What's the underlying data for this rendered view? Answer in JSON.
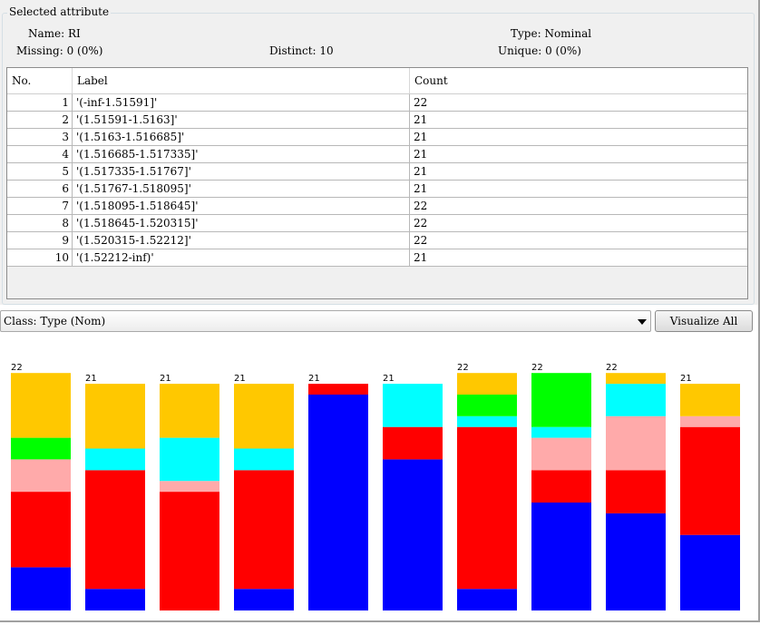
{
  "selected_attribute": {
    "title": "Selected attribute",
    "name_label": "Name:",
    "name_value": "RI",
    "type_label": "Type:",
    "type_value": "Nominal",
    "missing_label": "Missing:",
    "missing_value": "0 (0%)",
    "distinct_label": "Distinct:",
    "distinct_value": "10",
    "unique_label": "Unique:",
    "unique_value": "0 (0%)"
  },
  "table": {
    "headers": [
      "No.",
      "Label",
      "Count"
    ],
    "rows": [
      {
        "no": "1",
        "label": "'(-inf-1.51591]'",
        "count": "22"
      },
      {
        "no": "2",
        "label": "'(1.51591-1.5163]'",
        "count": "21"
      },
      {
        "no": "3",
        "label": "'(1.5163-1.516685]'",
        "count": "21"
      },
      {
        "no": "4",
        "label": "'(1.516685-1.517335]'",
        "count": "21"
      },
      {
        "no": "5",
        "label": "'(1.517335-1.51767]'",
        "count": "21"
      },
      {
        "no": "6",
        "label": "'(1.51767-1.518095]'",
        "count": "21"
      },
      {
        "no": "7",
        "label": "'(1.518095-1.518645]'",
        "count": "22"
      },
      {
        "no": "8",
        "label": "'(1.518645-1.520315]'",
        "count": "22"
      },
      {
        "no": "9",
        "label": "'(1.520315-1.52212]'",
        "count": "22"
      },
      {
        "no": "10",
        "label": "'(1.52212-inf)'",
        "count": "21"
      }
    ]
  },
  "class_select": {
    "value": "Class: Type (Nom)"
  },
  "visualize_button": {
    "label": "Visualize All"
  },
  "colors": {
    "blue": "#0000ff",
    "red": "#ff0000",
    "pink": "#ffaaaa",
    "green": "#00ff00",
    "cyan": "#00ffff",
    "orange": "#ffc800"
  },
  "chart_data": {
    "type": "bar",
    "stacked": true,
    "categories": [
      "1",
      "2",
      "3",
      "4",
      "5",
      "6",
      "7",
      "8",
      "9",
      "10"
    ],
    "totals": [
      22,
      21,
      21,
      21,
      21,
      21,
      22,
      22,
      22,
      21
    ],
    "segment_order_bottom_to_top": [
      "blue",
      "red",
      "pink",
      "cyan",
      "green",
      "orange"
    ],
    "series": [
      {
        "color": "blue",
        "values": [
          4,
          2,
          0,
          2,
          20,
          14,
          2,
          10,
          9,
          7
        ]
      },
      {
        "color": "red",
        "values": [
          7,
          11,
          11,
          11,
          1,
          3,
          15,
          3,
          4,
          10
        ]
      },
      {
        "color": "pink",
        "values": [
          3,
          0,
          1,
          0,
          0,
          0,
          0,
          3,
          5,
          1
        ]
      },
      {
        "color": "cyan",
        "values": [
          0,
          2,
          4,
          2,
          0,
          4,
          1,
          1,
          3,
          0
        ]
      },
      {
        "color": "green",
        "values": [
          2,
          0,
          0,
          0,
          0,
          0,
          2,
          5,
          0,
          0
        ]
      },
      {
        "color": "orange",
        "values": [
          6,
          6,
          5,
          6,
          0,
          0,
          2,
          0,
          1,
          3
        ]
      }
    ]
  }
}
